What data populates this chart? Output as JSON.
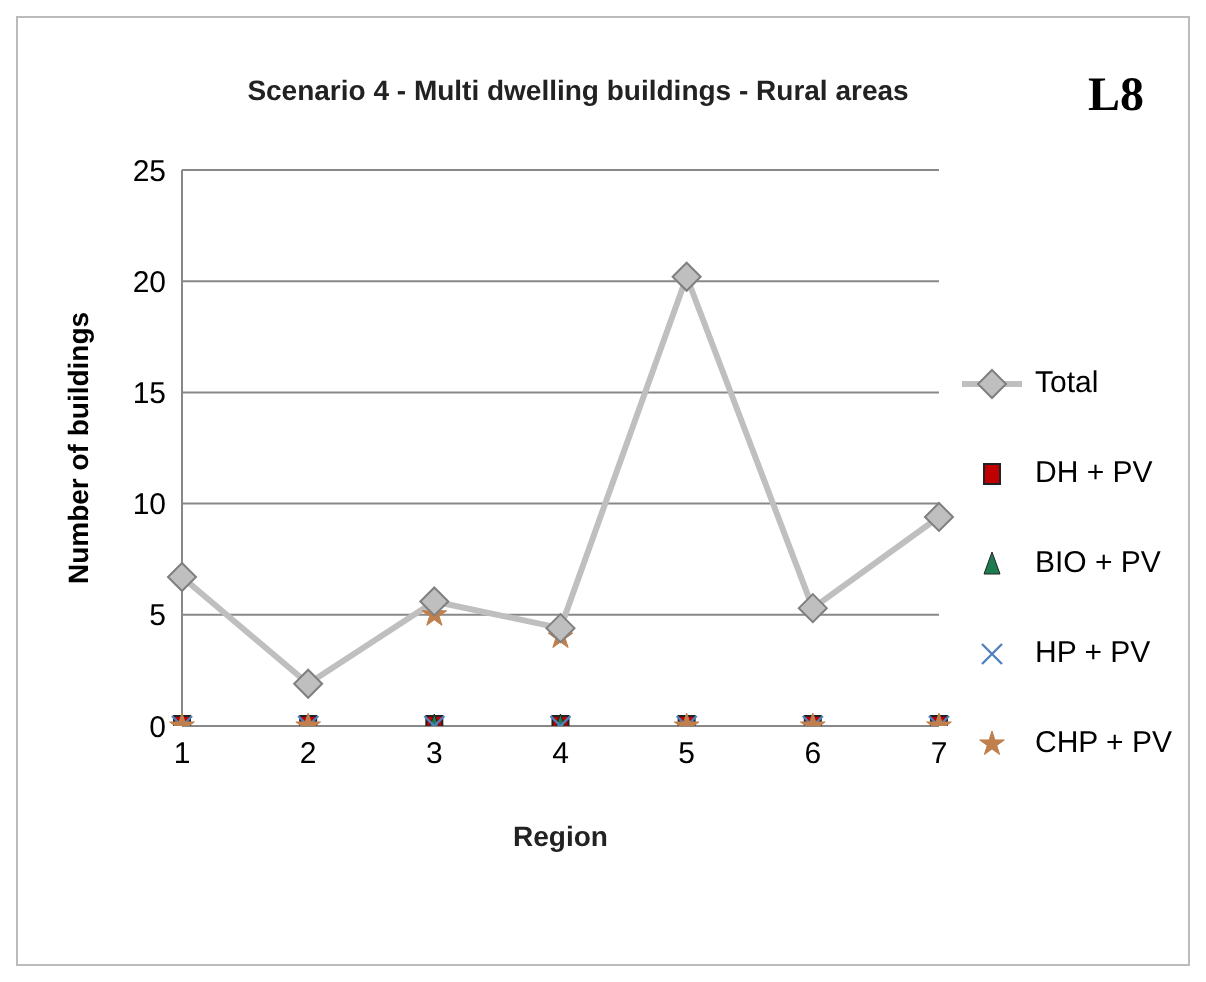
{
  "chart_data": {
    "type": "line",
    "title": "Scenario 4 - Multi dwelling buildings - Rural areas",
    "xlabel": "Region",
    "ylabel": "Number of buildings",
    "annotations": [
      "L8"
    ],
    "categories": [
      "1",
      "2",
      "3",
      "4",
      "5",
      "6",
      "7"
    ],
    "series": [
      {
        "name": "Total",
        "marker": "diamond",
        "color": "#bfbfbf",
        "values": [
          6.7,
          1.9,
          5.6,
          4.4,
          20.2,
          5.3,
          9.4
        ]
      },
      {
        "name": "DH + PV",
        "type": "scatter",
        "marker": "square",
        "color": "#c00000",
        "values": [
          0,
          0,
          0,
          0,
          0,
          0,
          0
        ]
      },
      {
        "name": "BIO + PV",
        "type": "scatter",
        "marker": "triangle",
        "color": "#1e7b4f",
        "values": [
          null,
          null,
          0,
          0,
          null,
          null,
          null
        ]
      },
      {
        "name": "HP + PV",
        "type": "scatter",
        "marker": "cross",
        "color": "#4f81bd",
        "values": [
          0,
          0,
          0,
          0,
          0,
          0,
          0
        ]
      },
      {
        "name": "CHP + PV",
        "type": "scatter",
        "marker": "star",
        "color": "#c0804d",
        "values": [
          0,
          0,
          5,
          4,
          0,
          0,
          0
        ]
      }
    ],
    "ylim": [
      0,
      25
    ],
    "yticks": [
      0,
      5,
      10,
      15,
      20,
      25
    ],
    "grid": "y",
    "legend": "right"
  }
}
